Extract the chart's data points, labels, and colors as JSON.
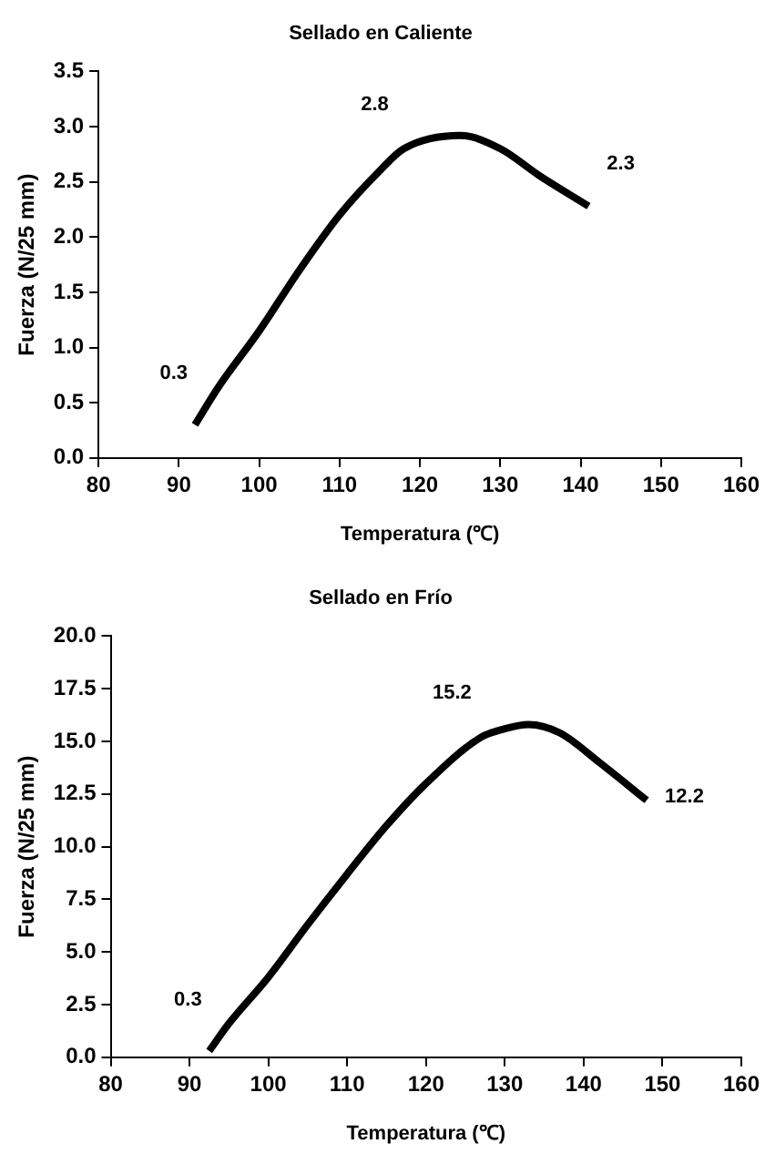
{
  "chart_data": [
    {
      "type": "line",
      "title": "Sellado en Caliente",
      "xlabel": "Temperatura (℃)",
      "ylabel": "Fuerza (N/25 mm)",
      "x": [
        92,
        95,
        100,
        105,
        110,
        115,
        118,
        125,
        130,
        135,
        141
      ],
      "series": [
        {
          "color": "#000000",
          "values": [
            0.3,
            0.65,
            1.15,
            1.7,
            2.2,
            2.6,
            2.8,
            2.92,
            2.8,
            2.55,
            2.28
          ]
        }
      ],
      "xlim": [
        80,
        160
      ],
      "xticks": [
        80,
        90,
        100,
        110,
        120,
        130,
        140,
        150,
        160
      ],
      "ylim": [
        0,
        3.5
      ],
      "yticks": [
        {
          "value": 0,
          "label": "0.0"
        },
        {
          "value": 0.5,
          "label": "0.5"
        },
        {
          "value": 1,
          "label": "1.0"
        },
        {
          "value": 1.5,
          "label": "1.5"
        },
        {
          "value": 2,
          "label": "2.0"
        },
        {
          "value": 2.5,
          "label": "2.5"
        },
        {
          "value": 3,
          "label": "3.0"
        },
        {
          "value": 3.5,
          "label": "3.5"
        }
      ],
      "annotations": [
        {
          "text": "0.3",
          "x": 92,
          "y": 0.3
        },
        {
          "text": "2.8",
          "x": 118,
          "y": 2.8
        },
        {
          "text": "2.3",
          "x": 141,
          "y": 2.3
        }
      ],
      "grid": false,
      "legend": false,
      "marker": "none",
      "line_style": "solid"
    },
    {
      "type": "line",
      "title": "Sellado en Frío",
      "xlabel": "Temperatura (℃)",
      "ylabel": "Fuerza (N/25 mm)",
      "x": [
        92.5,
        95,
        100,
        105,
        110,
        115,
        120,
        127,
        130,
        133,
        137,
        142,
        148
      ],
      "series": [
        {
          "color": "#000000",
          "values": [
            0.3,
            1.6,
            3.8,
            6.3,
            8.7,
            11,
            13,
            15.2,
            15.6,
            15.8,
            15.4,
            14,
            12.2
          ]
        }
      ],
      "xlim": [
        80,
        160
      ],
      "xticks": [
        80,
        90,
        100,
        110,
        120,
        130,
        140,
        150,
        160
      ],
      "ylim": [
        0,
        20
      ],
      "yticks": [
        {
          "value": 0,
          "label": "0.0"
        },
        {
          "value": 2.5,
          "label": "2.5"
        },
        {
          "value": 5,
          "label": "5.0"
        },
        {
          "value": 7.5,
          "label": "7.5"
        },
        {
          "value": 10,
          "label": "10.0"
        },
        {
          "value": 12.5,
          "label": "12.5"
        },
        {
          "value": 15,
          "label": "15.0"
        },
        {
          "value": 17.5,
          "label": "17.5"
        },
        {
          "value": 20,
          "label": "20.0"
        }
      ],
      "annotations": [
        {
          "text": "0.3",
          "x": 92.5,
          "y": 0.3
        },
        {
          "text": "15.2",
          "x": 127,
          "y": 15.2
        },
        {
          "text": "12.2",
          "x": 148,
          "y": 12.2
        }
      ],
      "grid": false,
      "legend": false,
      "marker": "none",
      "line_style": "solid"
    }
  ]
}
